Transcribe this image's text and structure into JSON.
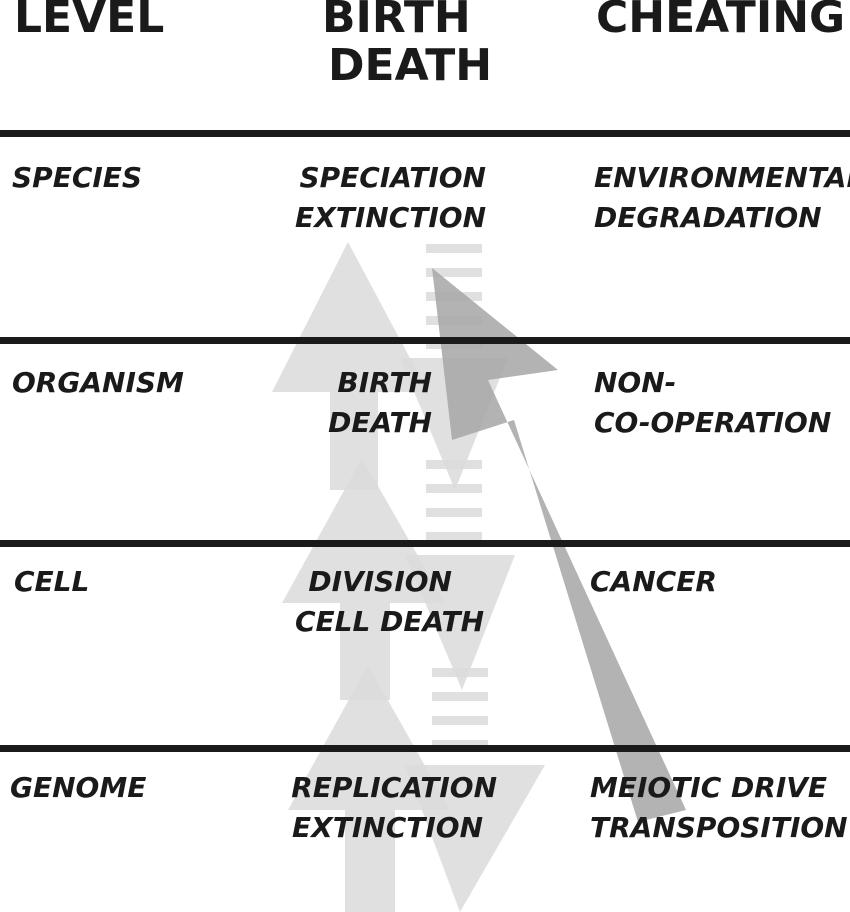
{
  "headers": {
    "level": "LEVEL",
    "birth_death": [
      "BIRTH",
      "DEATH"
    ],
    "cheating": "CHEATING"
  },
  "rows": [
    {
      "level": "SPECIES",
      "birth_death": [
        "SPECIATION",
        "EXTINCTION"
      ],
      "cheating": [
        "ENVIRONMENTAL",
        "DEGRADATION"
      ]
    },
    {
      "level": "ORGANISM",
      "birth_death": [
        "BIRTH",
        "DEATH"
      ],
      "cheating": [
        "NON-",
        "CO-OPERATION"
      ]
    },
    {
      "level": "CELL",
      "birth_death": [
        "DIVISION",
        "CELL DEATH"
      ],
      "cheating": [
        "CANCER"
      ]
    },
    {
      "level": "GENOME",
      "birth_death": [
        "REPLICATION",
        "EXTINCTION"
      ],
      "cheating": [
        "MEIOTIC DRIVE",
        "TRANSPOSITION"
      ]
    }
  ],
  "colors": {
    "text": "#1a1a1a",
    "rule": "#1a1a1a",
    "light_arrow": "#dadada",
    "dark_arrow": "#a6a6a6"
  }
}
